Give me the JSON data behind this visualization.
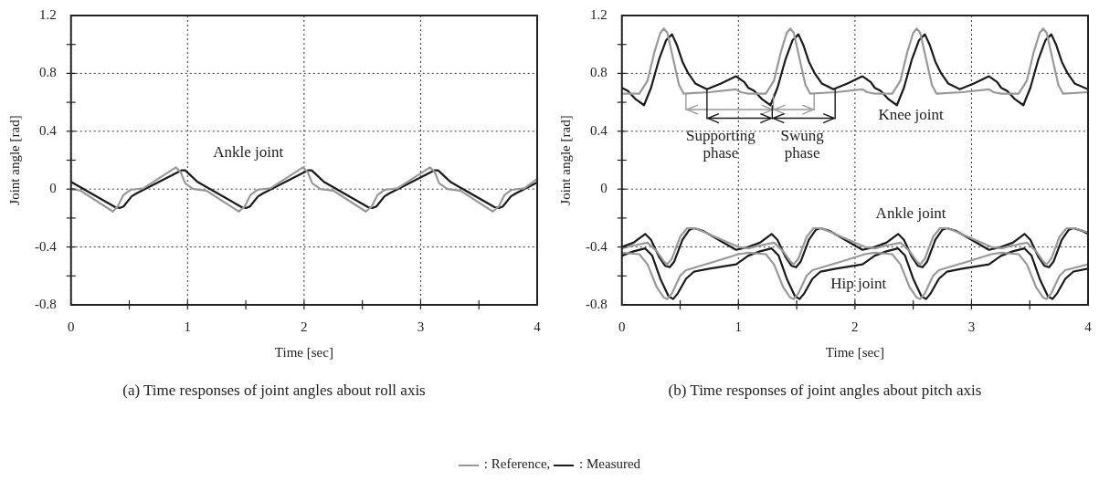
{
  "chart_data": [
    {
      "type": "line",
      "xlabel": "Time [sec]",
      "ylabel": "Joint angle [rad]",
      "xlim": [
        0,
        4
      ],
      "ylim": [
        -0.8,
        1.2
      ],
      "xticks": [
        0,
        {
          "value": 0.5,
          "label": null
        },
        1,
        {
          "value": 1.5,
          "label": null
        },
        2,
        {
          "value": 2.5,
          "label": null
        },
        3,
        {
          "value": 3.5,
          "label": null
        },
        4
      ],
      "yticks": [
        -0.8,
        {
          "value": -0.6,
          "label": null
        },
        -0.4,
        {
          "value": -0.2,
          "label": null
        },
        0,
        {
          "value": 0.2,
          "label": null
        },
        0.4,
        {
          "value": 0.6,
          "label": null
        },
        0.8,
        {
          "value": 1.0,
          "label": null
        },
        1.2
      ],
      "grid": true,
      "legend": "bottom",
      "marker": "none",
      "line_style": "solid",
      "series": [
        {
          "name": ": Reference,",
          "color": "#999999",
          "x": [
            0,
            0.08,
            0.36,
            0.4,
            0.45,
            0.51,
            0.62,
            0.9,
            0.94,
            0.98,
            1.05,
            1.16,
            1.44,
            1.49,
            1.54,
            1.6,
            1.71,
            1.99,
            2.03,
            2.07,
            2.14,
            2.25,
            2.53,
            2.58,
            2.63,
            2.69,
            2.8,
            3.08,
            3.12,
            3.16,
            3.23,
            3.34,
            3.62,
            3.67,
            3.72,
            3.78,
            3.89,
            4.0
          ],
          "values": [
            0,
            -0.01,
            -0.155,
            -0.12,
            -0.04,
            -0.005,
            0.005,
            0.15,
            0.12,
            0.04,
            0,
            -0.01,
            -0.155,
            -0.12,
            -0.04,
            -0.005,
            0.005,
            0.15,
            0.12,
            0.04,
            0,
            -0.01,
            -0.155,
            -0.12,
            -0.04,
            -0.005,
            0.005,
            0.15,
            0.12,
            0.04,
            0,
            -0.01,
            -0.155,
            -0.12,
            -0.04,
            -0.005,
            0.005,
            0.07
          ]
        },
        {
          "name": ": Measured",
          "color": "#1a1a1a",
          "x": [
            0,
            0.38,
            0.42,
            0.45,
            0.52,
            0.56,
            0.95,
            0.98,
            1.02,
            1.085,
            1.465,
            1.505,
            1.535,
            1.605,
            1.645,
            2.035,
            2.065,
            2.105,
            2.17,
            2.55,
            2.59,
            2.62,
            2.69,
            2.73,
            3.12,
            3.15,
            3.19,
            3.255,
            3.635,
            3.675,
            3.705,
            3.775,
            3.815,
            4.0
          ],
          "values": [
            0.05,
            -0.125,
            -0.13,
            -0.12,
            -0.05,
            -0.03,
            0.13,
            0.13,
            0.1,
            0.05,
            -0.125,
            -0.13,
            -0.12,
            -0.05,
            -0.03,
            0.13,
            0.13,
            0.1,
            0.05,
            -0.125,
            -0.13,
            -0.12,
            -0.05,
            -0.03,
            0.13,
            0.13,
            0.1,
            0.05,
            -0.125,
            -0.13,
            -0.12,
            -0.05,
            -0.03,
            0.045
          ]
        }
      ],
      "annotations": [
        "Ankle joint",
        "(a) Time responses of joint angles about roll axis"
      ]
    },
    {
      "type": "line",
      "xlabel": "Time [sec]",
      "ylabel": "Joint angle [rad]",
      "xlim": [
        0,
        4
      ],
      "ylim": [
        -0.8,
        1.2
      ],
      "xticks": [
        0,
        {
          "value": 0.5,
          "label": null
        },
        1,
        {
          "value": 1.5,
          "label": null
        },
        2,
        {
          "value": 2.5,
          "label": null
        },
        3,
        {
          "value": 3.5,
          "label": null
        },
        4
      ],
      "yticks": [
        -0.8,
        {
          "value": -0.6,
          "label": null
        },
        -0.4,
        {
          "value": -0.2,
          "label": null
        },
        0,
        {
          "value": 0.2,
          "label": null
        },
        0.4,
        {
          "value": 0.6,
          "label": null
        },
        0.8,
        {
          "value": 1.0,
          "label": null
        },
        1.2
      ],
      "grid": true,
      "marker": "none",
      "line_style": "solid",
      "series": [
        {
          "color": "#999999",
          "x": [
            0,
            0.15,
            0.22,
            0.28,
            0.33,
            0.36,
            0.39,
            0.44,
            0.49,
            0.53,
            0.75,
            0.98,
            1.02,
            1.085,
            1.235,
            1.305,
            1.365,
            1.415,
            1.445,
            1.475,
            1.525,
            1.575,
            1.615,
            1.835,
            2.065,
            2.105,
            2.17,
            2.32,
            2.39,
            2.45,
            2.5,
            2.53,
            2.56,
            2.61,
            2.66,
            2.7,
            2.92,
            3.15,
            3.19,
            3.255,
            3.405,
            3.475,
            3.535,
            3.585,
            3.615,
            3.645,
            3.695,
            3.745,
            3.785,
            4.0
          ],
          "values": [
            0.66,
            0.66,
            0.75,
            0.95,
            1.08,
            1.11,
            1.08,
            0.9,
            0.72,
            0.66,
            0.67,
            0.69,
            0.67,
            0.66,
            0.66,
            0.75,
            0.95,
            1.08,
            1.11,
            1.08,
            0.9,
            0.72,
            0.66,
            0.67,
            0.69,
            0.67,
            0.66,
            0.66,
            0.75,
            0.95,
            1.08,
            1.11,
            1.08,
            0.9,
            0.72,
            0.66,
            0.67,
            0.69,
            0.67,
            0.66,
            0.66,
            0.75,
            0.95,
            1.08,
            1.11,
            1.08,
            0.9,
            0.72,
            0.66,
            0.67
          ]
        },
        {
          "color": "#1a1a1a",
          "x": [
            0,
            0.05,
            0.12,
            0.19,
            0.25,
            0.32,
            0.38,
            0.43,
            0.47,
            0.52,
            0.57,
            0.63,
            0.73,
            0.85,
            0.98,
            1.05,
            1.085,
            1.135,
            1.205,
            1.275,
            1.335,
            1.405,
            1.465,
            1.515,
            1.555,
            1.605,
            1.655,
            1.715,
            1.815,
            1.935,
            2.065,
            2.135,
            2.17,
            2.22,
            2.29,
            2.36,
            2.42,
            2.49,
            2.55,
            2.6,
            2.64,
            2.69,
            2.74,
            2.8,
            2.9,
            3.02,
            3.15,
            3.22,
            3.255,
            3.305,
            3.375,
            3.445,
            3.505,
            3.575,
            3.635,
            3.685,
            3.725,
            3.775,
            3.825,
            3.885,
            4.0
          ],
          "values": [
            0.7,
            0.68,
            0.62,
            0.58,
            0.7,
            0.9,
            1.03,
            1.07,
            1.0,
            0.88,
            0.8,
            0.73,
            0.69,
            0.73,
            0.78,
            0.74,
            0.7,
            0.68,
            0.62,
            0.58,
            0.7,
            0.9,
            1.03,
            1.07,
            1.0,
            0.88,
            0.8,
            0.73,
            0.69,
            0.73,
            0.78,
            0.74,
            0.7,
            0.68,
            0.62,
            0.58,
            0.7,
            0.9,
            1.03,
            1.07,
            1.0,
            0.88,
            0.8,
            0.73,
            0.69,
            0.73,
            0.78,
            0.74,
            0.7,
            0.68,
            0.62,
            0.58,
            0.7,
            0.9,
            1.03,
            1.07,
            1.0,
            0.88,
            0.8,
            0.73,
            0.69
          ]
        },
        {
          "color": "#999999",
          "x": [
            0,
            0.1,
            0.22,
            0.3,
            0.36,
            0.39,
            0.43,
            0.5,
            0.56,
            0.63,
            0.8,
            1.0,
            1.085,
            1.185,
            1.305,
            1.385,
            1.445,
            1.475,
            1.515,
            1.585,
            1.645,
            1.715,
            1.885,
            2.085,
            2.17,
            2.27,
            2.39,
            2.47,
            2.53,
            2.56,
            2.6,
            2.67,
            2.73,
            2.8,
            2.97,
            3.17,
            3.255,
            3.355,
            3.475,
            3.555,
            3.615,
            3.645,
            3.685,
            3.755,
            3.815,
            3.885,
            4.0
          ],
          "values": [
            -0.41,
            -0.39,
            -0.37,
            -0.43,
            -0.5,
            -0.52,
            -0.48,
            -0.33,
            -0.27,
            -0.27,
            -0.33,
            -0.4,
            -0.41,
            -0.39,
            -0.37,
            -0.43,
            -0.5,
            -0.52,
            -0.48,
            -0.33,
            -0.27,
            -0.27,
            -0.33,
            -0.4,
            -0.41,
            -0.39,
            -0.37,
            -0.43,
            -0.5,
            -0.52,
            -0.48,
            -0.33,
            -0.27,
            -0.27,
            -0.33,
            -0.4,
            -0.41,
            -0.39,
            -0.37,
            -0.43,
            -0.5,
            -0.52,
            -0.48,
            -0.33,
            -0.27,
            -0.27,
            -0.3
          ]
        },
        {
          "color": "#1a1a1a",
          "x": [
            0,
            0.1,
            0.2,
            0.25,
            0.32,
            0.37,
            0.41,
            0.45,
            0.52,
            0.58,
            0.62,
            0.7,
            0.85,
            0.98,
            1.085,
            1.185,
            1.285,
            1.335,
            1.405,
            1.455,
            1.495,
            1.535,
            1.605,
            1.665,
            1.705,
            1.785,
            1.935,
            2.065,
            2.17,
            2.27,
            2.37,
            2.42,
            2.49,
            2.54,
            2.58,
            2.62,
            2.69,
            2.75,
            2.79,
            2.87,
            3.02,
            3.15,
            3.255,
            3.355,
            3.455,
            3.505,
            3.575,
            3.625,
            3.665,
            3.705,
            3.775,
            3.835,
            3.875,
            3.955,
            4.0
          ],
          "values": [
            -0.4,
            -0.37,
            -0.31,
            -0.35,
            -0.47,
            -0.53,
            -0.54,
            -0.5,
            -0.35,
            -0.28,
            -0.27,
            -0.29,
            -0.36,
            -0.42,
            -0.4,
            -0.37,
            -0.31,
            -0.35,
            -0.47,
            -0.53,
            -0.54,
            -0.5,
            -0.35,
            -0.28,
            -0.27,
            -0.29,
            -0.36,
            -0.42,
            -0.4,
            -0.37,
            -0.31,
            -0.35,
            -0.47,
            -0.53,
            -0.54,
            -0.5,
            -0.35,
            -0.28,
            -0.27,
            -0.29,
            -0.36,
            -0.42,
            -0.4,
            -0.37,
            -0.31,
            -0.35,
            -0.47,
            -0.53,
            -0.54,
            -0.5,
            -0.35,
            -0.28,
            -0.27,
            -0.29,
            -0.31
          ]
        },
        {
          "color": "#999999",
          "x": [
            0,
            0.15,
            0.22,
            0.3,
            0.36,
            0.39,
            0.43,
            0.5,
            0.55,
            0.8,
            1.0,
            1.085,
            1.235,
            1.305,
            1.385,
            1.445,
            1.475,
            1.515,
            1.585,
            1.635,
            1.885,
            2.085,
            2.17,
            2.32,
            2.39,
            2.47,
            2.53,
            2.56,
            2.6,
            2.67,
            2.72,
            2.97,
            3.17,
            3.255,
            3.405,
            3.475,
            3.555,
            3.615,
            3.645,
            3.685,
            3.755,
            3.805,
            4.0
          ],
          "values": [
            -0.44,
            -0.45,
            -0.52,
            -0.68,
            -0.75,
            -0.76,
            -0.72,
            -0.6,
            -0.56,
            -0.5,
            -0.45,
            -0.44,
            -0.45,
            -0.52,
            -0.68,
            -0.75,
            -0.76,
            -0.72,
            -0.6,
            -0.56,
            -0.5,
            -0.45,
            -0.44,
            -0.45,
            -0.52,
            -0.68,
            -0.75,
            -0.76,
            -0.72,
            -0.6,
            -0.56,
            -0.5,
            -0.45,
            -0.44,
            -0.45,
            -0.52,
            -0.68,
            -0.75,
            -0.76,
            -0.72,
            -0.6,
            -0.56,
            -0.52
          ]
        },
        {
          "color": "#1a1a1a",
          "x": [
            0,
            0.1,
            0.2,
            0.26,
            0.33,
            0.4,
            0.44,
            0.48,
            0.55,
            0.62,
            0.75,
            0.98,
            1.085,
            1.185,
            1.285,
            1.345,
            1.415,
            1.485,
            1.525,
            1.565,
            1.635,
            1.705,
            1.835,
            2.065,
            2.17,
            2.27,
            2.37,
            2.43,
            2.5,
            2.57,
            2.61,
            2.65,
            2.72,
            2.79,
            2.92,
            3.15,
            3.255,
            3.355,
            3.455,
            3.515,
            3.585,
            3.655,
            3.695,
            3.735,
            3.805,
            3.875,
            4.0
          ],
          "values": [
            -0.46,
            -0.43,
            -0.41,
            -0.46,
            -0.62,
            -0.74,
            -0.76,
            -0.72,
            -0.62,
            -0.57,
            -0.55,
            -0.52,
            -0.46,
            -0.43,
            -0.41,
            -0.46,
            -0.62,
            -0.74,
            -0.76,
            -0.72,
            -0.62,
            -0.57,
            -0.55,
            -0.52,
            -0.46,
            -0.43,
            -0.41,
            -0.46,
            -0.62,
            -0.74,
            -0.76,
            -0.72,
            -0.62,
            -0.57,
            -0.55,
            -0.52,
            -0.46,
            -0.43,
            -0.41,
            -0.46,
            -0.62,
            -0.74,
            -0.76,
            -0.72,
            -0.62,
            -0.57,
            -0.55
          ]
        }
      ],
      "annotations": [
        "Knee joint",
        {
          "text": "Supporting\nphase",
          "x": 0.73,
          "y": 0.69
        },
        {
          "text": "Swung\nphase",
          "x": 1.83,
          "y": 0.69
        },
        "Ankle joint",
        "Hip joint",
        "(b) Time responses of joint angles about pitch axis"
      ]
    }
  ]
}
